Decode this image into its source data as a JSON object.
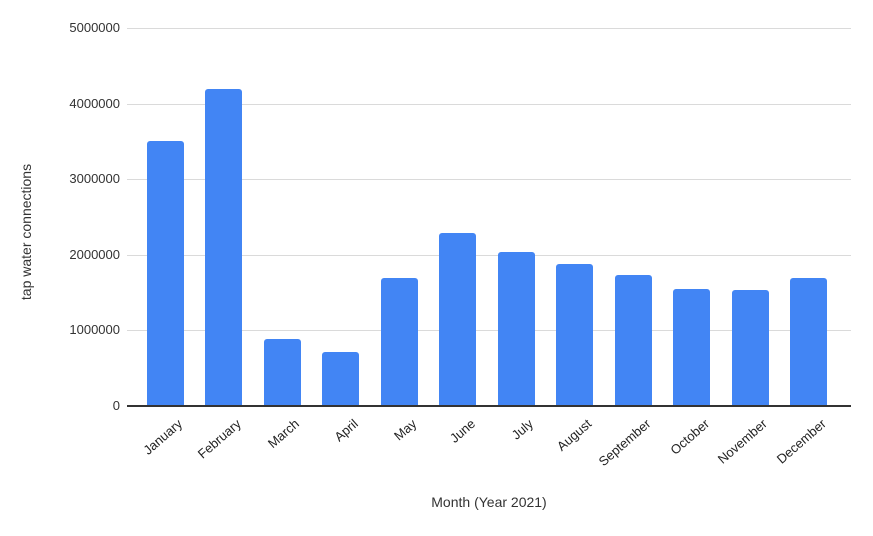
{
  "chart_data": {
    "type": "bar",
    "title": "",
    "xlabel": "Month (Year 2021)",
    "ylabel": "tap water connections",
    "categories": [
      "January",
      "February",
      "March",
      "April",
      "May",
      "June",
      "July",
      "August",
      "September",
      "October",
      "November",
      "December"
    ],
    "values": [
      3500000,
      4190000,
      890000,
      710000,
      1690000,
      2290000,
      2040000,
      1880000,
      1730000,
      1550000,
      1530000,
      1690000
    ],
    "ylim": [
      0,
      5000000
    ],
    "yticks": [
      0,
      1000000,
      2000000,
      3000000,
      4000000,
      5000000
    ],
    "ytick_labels": [
      "0",
      "1000000",
      "2000000",
      "3000000",
      "4000000",
      "5000000"
    ],
    "grid": true,
    "legend": false,
    "x_labels_rotated": true,
    "colors": {
      "bar": "#4285f4",
      "gridline": "#dadada",
      "axis_line": "#333333",
      "tick_text": "#333333",
      "title_text": "#333333"
    }
  }
}
